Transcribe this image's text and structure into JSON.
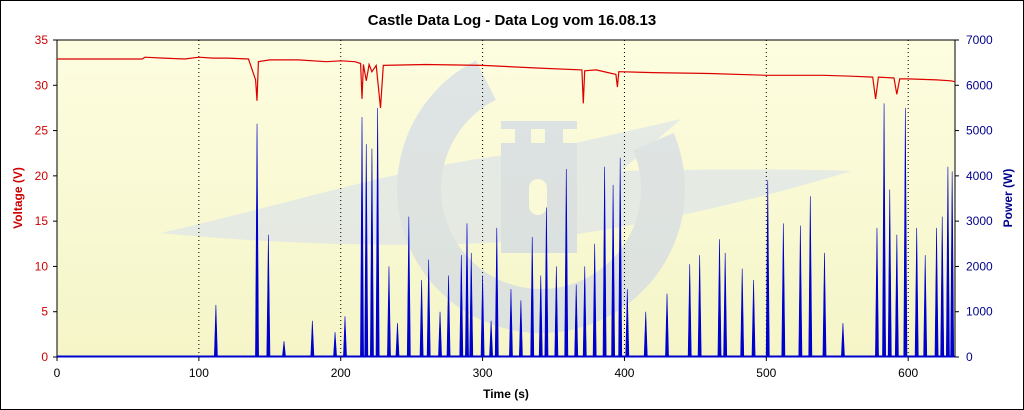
{
  "chart_data": {
    "type": "line",
    "title": "Castle Data Log - Data Log vom 16.08.13",
    "xlabel": "Time (s)",
    "ylabel_left": "Voltage (V)",
    "ylabel_right": "Power (W)",
    "xlim": [
      0,
      633
    ],
    "ylim_left": [
      0,
      35
    ],
    "ylim_right": [
      0,
      7000
    ],
    "x_ticks": [
      "0",
      "100",
      "200",
      "300",
      "400",
      "500",
      "600"
    ],
    "y_left_ticks": [
      "0",
      "5",
      "10",
      "15",
      "20",
      "25",
      "30",
      "35"
    ],
    "y_right_ticks": [
      "0",
      "1000",
      "2000",
      "3000",
      "4000",
      "5000",
      "6000",
      "7000"
    ],
    "grid": "vertical dotted",
    "background": "light yellow with Castle logo watermark",
    "colors": {
      "voltage": "#dd0000",
      "power": "#0000cc",
      "axis_left": "#cc0000",
      "axis_right": "#00008b"
    },
    "series": [
      {
        "name": "Voltage (V)",
        "axis": "left",
        "x": [
          0,
          45,
          60,
          62,
          75,
          90,
          100,
          110,
          120,
          135,
          140,
          141,
          142,
          150,
          170,
          190,
          200,
          210,
          214,
          215,
          216,
          218,
          220,
          222,
          225,
          228,
          230,
          260,
          300,
          340,
          370,
          371,
          372,
          380,
          394,
          395,
          396,
          420,
          460,
          500,
          540,
          560,
          575,
          577,
          579,
          590,
          592,
          594,
          600,
          620,
          630,
          633
        ],
        "values": [
          32.9,
          32.9,
          32.9,
          33.1,
          33.0,
          32.9,
          33.1,
          33.0,
          33.0,
          32.9,
          30.6,
          28.3,
          32.6,
          32.8,
          32.8,
          32.6,
          32.7,
          32.6,
          32.4,
          28.5,
          32.3,
          30.5,
          32.3,
          31.5,
          32.2,
          27.5,
          32.2,
          32.3,
          32.2,
          31.9,
          31.7,
          28.0,
          31.6,
          31.7,
          31.2,
          29.8,
          31.5,
          31.4,
          31.3,
          31.1,
          31.1,
          31.0,
          30.9,
          28.5,
          30.9,
          30.8,
          29.0,
          30.7,
          30.7,
          30.6,
          30.5,
          30.4
        ]
      },
      {
        "name": "Power (W)",
        "axis": "right",
        "x": [
          112,
          141,
          149,
          160,
          180,
          196,
          203,
          215,
          218,
          222,
          226,
          234,
          240,
          248,
          257,
          262,
          270,
          276,
          285,
          289,
          292,
          300,
          306,
          310,
          320,
          327,
          335,
          341,
          345,
          352,
          359,
          366,
          372,
          379,
          386,
          392,
          397,
          402,
          415,
          430,
          446,
          453,
          467,
          471,
          483,
          491,
          501,
          512,
          524,
          531,
          541,
          554,
          578,
          583,
          587,
          592,
          598,
          606,
          612,
          620,
          624,
          628,
          631
        ],
        "values": [
          1150,
          5150,
          2700,
          350,
          800,
          550,
          900,
          5300,
          4700,
          4600,
          5500,
          2000,
          750,
          3100,
          1700,
          2150,
          1000,
          1800,
          2250,
          2950,
          2300,
          1800,
          800,
          2850,
          1500,
          1250,
          2650,
          1800,
          3300,
          2000,
          4150,
          1600,
          2000,
          2500,
          4200,
          3800,
          4400,
          1500,
          1000,
          1400,
          2050,
          2250,
          2600,
          2300,
          1950,
          1700,
          3900,
          2950,
          2900,
          3550,
          2300,
          750,
          2850,
          5600,
          3700,
          2700,
          5500,
          2850,
          2250,
          2850,
          3100,
          4200,
          4100
        ]
      }
    ]
  }
}
